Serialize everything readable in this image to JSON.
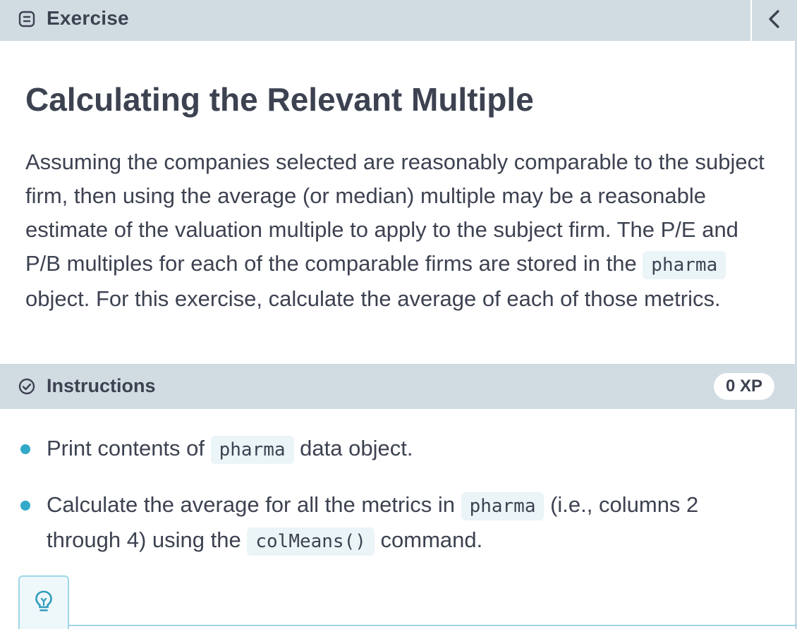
{
  "header": {
    "tab_label": "Exercise",
    "tab_icon": "document-icon",
    "collapse_icon": "chevron-left-icon"
  },
  "exercise": {
    "title": "Calculating the Relevant Multiple",
    "paragraph": {
      "text_1": "Assuming the companies selected are reasonably comparable to the subject firm, then using the average (or median) multiple may be a reasonable estimate of the valuation multiple to apply to the subject firm. The P/E and P/B multiples for each of the comparable firms are stored in the ",
      "code_1": "pharma",
      "text_2": " object. For this exercise, calculate the average of each of those metrics."
    }
  },
  "instructions": {
    "label": "Instructions",
    "icon": "check-circle-icon",
    "xp": "0 XP",
    "items": [
      {
        "text_1": "Print contents of ",
        "code_1": "pharma",
        "text_2": " data object."
      },
      {
        "text_1": "Calculate the average for all the metrics in ",
        "code_1": "pharma",
        "text_2": " (i.e., columns 2 through 4) using the ",
        "code_2": "colMeans()",
        "text_3": " command."
      }
    ]
  },
  "hint": {
    "icon": "lightbulb-icon"
  },
  "colors": {
    "header_bg": "#d1dbe2",
    "text": "#3d4251",
    "code_bg": "#ebf4f7",
    "bullet": "#33a9c9",
    "hint_border": "#9fd6e6"
  }
}
